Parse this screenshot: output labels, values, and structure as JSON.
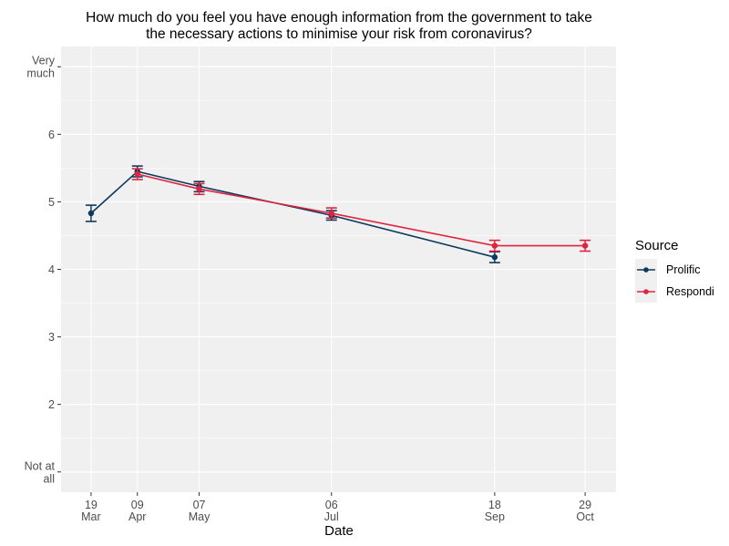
{
  "chart_data": {
    "type": "line",
    "title": "How much do you feel you have enough information from the government to take the necessary actions to minimise your risk from coronavirus?",
    "title_lines": [
      "How much do you feel you have enough information from the government to take",
      "the necessary actions to minimise your risk from coronavirus?"
    ],
    "xlabel": "Date",
    "ylabel": "",
    "ylim": [
      0.7,
      7.3
    ],
    "xlim_days": [
      64.4,
      316
    ],
    "grid": true,
    "x_ticks": [
      {
        "day": 78,
        "line1": "19",
        "line2": "Mar"
      },
      {
        "day": 99,
        "line1": "09",
        "line2": "Apr"
      },
      {
        "day": 127,
        "line1": "07",
        "line2": "May"
      },
      {
        "day": 187,
        "line1": "06",
        "line2": "Jul"
      },
      {
        "day": 261,
        "line1": "18",
        "line2": "Sep"
      },
      {
        "day": 302,
        "line1": "29",
        "line2": "Oct"
      }
    ],
    "y_ticks": [
      {
        "value": 1,
        "lines": [
          "Not at",
          "all"
        ]
      },
      {
        "value": 2,
        "lines": [
          "2"
        ]
      },
      {
        "value": 3,
        "lines": [
          "3"
        ]
      },
      {
        "value": 4,
        "lines": [
          "4"
        ]
      },
      {
        "value": 5,
        "lines": [
          "5"
        ]
      },
      {
        "value": 6,
        "lines": [
          "6"
        ]
      },
      {
        "value": 7,
        "lines": [
          "Very",
          "much"
        ]
      }
    ],
    "legend": {
      "title": "Source",
      "position": "right"
    },
    "series": [
      {
        "name": "Prolific",
        "color": "#0b3a5e",
        "points": [
          {
            "date": "19 Mar",
            "day": 78,
            "y": 4.83,
            "lo": 4.71,
            "hi": 4.95
          },
          {
            "date": "09 Apr",
            "day": 99,
            "y": 5.45,
            "lo": 5.37,
            "hi": 5.53
          },
          {
            "date": "07 May",
            "day": 127,
            "y": 5.23,
            "lo": 5.15,
            "hi": 5.3
          },
          {
            "date": "06 Jul",
            "day": 187,
            "y": 4.8,
            "lo": 4.73,
            "hi": 4.87
          },
          {
            "date": "18 Sep",
            "day": 261,
            "y": 4.18,
            "lo": 4.1,
            "hi": 4.26
          }
        ]
      },
      {
        "name": "Respondi",
        "color": "#e0233e",
        "points": [
          {
            "date": "09 Apr",
            "day": 99,
            "y": 5.41,
            "lo": 5.33,
            "hi": 5.49
          },
          {
            "date": "07 May",
            "day": 127,
            "y": 5.19,
            "lo": 5.11,
            "hi": 5.27
          },
          {
            "date": "06 Jul",
            "day": 187,
            "y": 4.83,
            "lo": 4.76,
            "hi": 4.91
          },
          {
            "date": "18 Sep",
            "day": 261,
            "y": 4.35,
            "lo": 4.27,
            "hi": 4.43
          },
          {
            "date": "29 Oct",
            "day": 302,
            "y": 4.35,
            "lo": 4.27,
            "hi": 4.43
          }
        ]
      }
    ]
  }
}
